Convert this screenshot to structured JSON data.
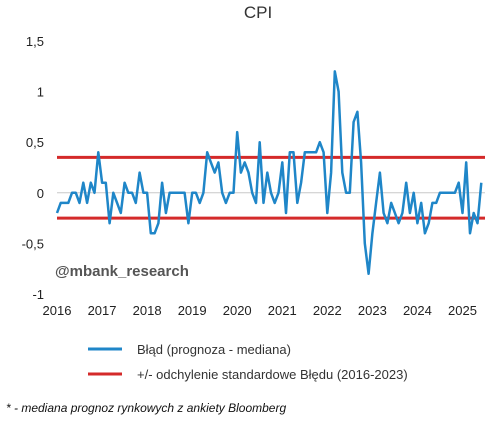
{
  "chart_data": {
    "type": "line",
    "title": "CPI",
    "ylim": [
      -1,
      1.5
    ],
    "xlim": [
      2016,
      2025.5
    ],
    "y_ticks": [
      -1,
      -0.5,
      0,
      0.5,
      1,
      1.5
    ],
    "y_tick_labels": [
      "-1",
      "-0,5",
      "0",
      "0,5",
      "1",
      "1,5"
    ],
    "x_ticks": [
      2016,
      2017,
      2018,
      2019,
      2020,
      2021,
      2022,
      2023,
      2024,
      2025
    ],
    "x_tick_labels": [
      "2016",
      "2017",
      "2018",
      "2019",
      "2020",
      "2021",
      "2022",
      "2023",
      "2024",
      "2025"
    ],
    "grid": false,
    "legend_placement": "bottom",
    "series": [
      {
        "name": "Błąd (prognoza - mediana)",
        "color": "#1f86c8",
        "x": [
          2016.0,
          2016.083,
          2016.167,
          2016.25,
          2016.333,
          2016.417,
          2016.5,
          2016.583,
          2016.667,
          2016.75,
          2016.833,
          2016.917,
          2017.0,
          2017.083,
          2017.167,
          2017.25,
          2017.333,
          2017.417,
          2017.5,
          2017.583,
          2017.667,
          2017.75,
          2017.833,
          2017.917,
          2018.0,
          2018.083,
          2018.167,
          2018.25,
          2018.333,
          2018.417,
          2018.5,
          2018.583,
          2018.667,
          2018.75,
          2018.833,
          2018.917,
          2019.0,
          2019.083,
          2019.167,
          2019.25,
          2019.333,
          2019.417,
          2019.5,
          2019.583,
          2019.667,
          2019.75,
          2019.833,
          2019.917,
          2020.0,
          2020.083,
          2020.167,
          2020.25,
          2020.333,
          2020.417,
          2020.5,
          2020.583,
          2020.667,
          2020.75,
          2020.833,
          2020.917,
          2021.0,
          2021.083,
          2021.167,
          2021.25,
          2021.333,
          2021.417,
          2021.5,
          2021.583,
          2021.667,
          2021.75,
          2021.833,
          2021.917,
          2022.0,
          2022.083,
          2022.167,
          2022.25,
          2022.333,
          2022.417,
          2022.5,
          2022.583,
          2022.667,
          2022.75,
          2022.833,
          2022.917,
          2023.0,
          2023.083,
          2023.167,
          2023.25,
          2023.333,
          2023.417,
          2023.5,
          2023.583,
          2023.667,
          2023.75,
          2023.833,
          2023.917,
          2024.0,
          2024.083,
          2024.167,
          2024.25,
          2024.333,
          2024.417,
          2024.5,
          2024.583,
          2024.667,
          2024.75,
          2024.833,
          2024.917,
          2025.0,
          2025.083,
          2025.167,
          2025.25,
          2025.333,
          2025.417
        ],
        "values": [
          -0.2,
          -0.1,
          -0.1,
          -0.1,
          0.0,
          0.0,
          -0.1,
          0.1,
          -0.1,
          0.1,
          0.0,
          0.4,
          0.1,
          0.1,
          -0.3,
          0.0,
          -0.1,
          -0.2,
          0.1,
          0.0,
          0.0,
          -0.1,
          0.2,
          0.0,
          0.0,
          -0.4,
          -0.4,
          -0.3,
          0.1,
          -0.2,
          0.0,
          0.0,
          0.0,
          0.0,
          0.0,
          -0.3,
          0.0,
          0.0,
          -0.1,
          0.0,
          0.4,
          0.3,
          0.2,
          0.3,
          0.0,
          -0.1,
          0.0,
          0.0,
          0.6,
          0.2,
          0.3,
          0.2,
          0.0,
          -0.1,
          0.5,
          -0.1,
          0.2,
          0.0,
          -0.1,
          0.0,
          0.3,
          -0.2,
          0.4,
          0.4,
          -0.1,
          0.1,
          0.4,
          0.4,
          0.4,
          0.4,
          0.5,
          0.4,
          -0.2,
          0.2,
          1.2,
          1.0,
          0.2,
          0.0,
          0.0,
          0.7,
          0.8,
          0.3,
          -0.5,
          -0.8,
          -0.4,
          -0.1,
          0.2,
          -0.2,
          -0.3,
          -0.1,
          -0.2,
          -0.3,
          -0.2,
          0.1,
          -0.2,
          0.0,
          -0.3,
          -0.1,
          -0.4,
          -0.3,
          -0.1,
          -0.1,
          0.0,
          0.0,
          0.0,
          0.0,
          0.0,
          0.1,
          -0.2,
          0.3,
          -0.4,
          -0.2,
          -0.3,
          0.1
        ]
      },
      {
        "name": "+/- odchylenie standardowe Błędu (2016-2023)",
        "color": "#d42a2a",
        "upper": 0.35,
        "lower": -0.25
      }
    ],
    "annotations": [
      "@mbank_research"
    ],
    "footnote": "* - mediana prognoz rynkowych z ankiety Bloomberg"
  }
}
